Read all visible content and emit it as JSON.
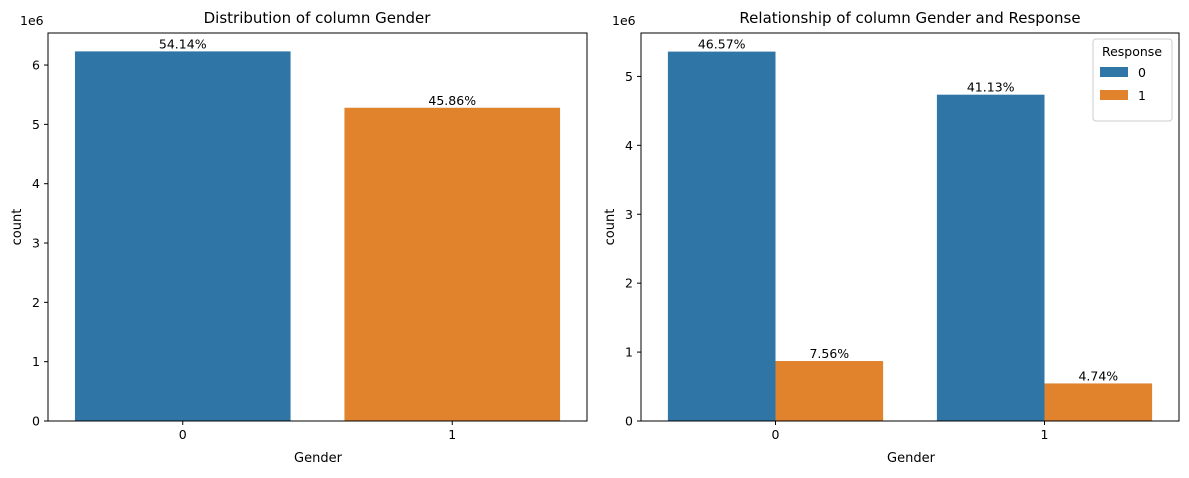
{
  "chart_data": [
    {
      "type": "bar",
      "title": "Distribution of column Gender",
      "xlabel": "Gender",
      "ylabel": "count",
      "offset_text": "1e6",
      "categories": [
        "0",
        "1"
      ],
      "series": [
        {
          "values": [
            6230000,
            5280000
          ],
          "labels": [
            "54.14%",
            "45.86%"
          ],
          "colors": [
            "#2f75a6",
            "#e1822d"
          ]
        }
      ],
      "yticks": [
        0,
        1000000,
        2000000,
        3000000,
        4000000,
        5000000,
        6000000
      ],
      "ytick_labels": [
        "0",
        "1",
        "2",
        "3",
        "4",
        "5",
        "6"
      ],
      "ylim": [
        0,
        6540000
      ],
      "grid": false,
      "legend": null
    },
    {
      "type": "bar",
      "title": "Relationship of column Gender and Response",
      "xlabel": "Gender",
      "ylabel": "count",
      "offset_text": "1e6",
      "categories": [
        "0",
        "1"
      ],
      "series": [
        {
          "name": "0",
          "color": "#2f75a6",
          "values": [
            5360000,
            4735000
          ],
          "labels": [
            "46.57%",
            "41.13%"
          ]
        },
        {
          "name": "1",
          "color": "#e1822d",
          "values": [
            870000,
            545000
          ],
          "labels": [
            "7.56%",
            "4.74%"
          ]
        }
      ],
      "yticks": [
        0,
        1000000,
        2000000,
        3000000,
        4000000,
        5000000
      ],
      "ytick_labels": [
        "0",
        "1",
        "2",
        "3",
        "4",
        "5"
      ],
      "ylim": [
        0,
        5630000
      ],
      "grid": false,
      "legend": {
        "title": "Response",
        "placement": "top-right"
      }
    }
  ]
}
